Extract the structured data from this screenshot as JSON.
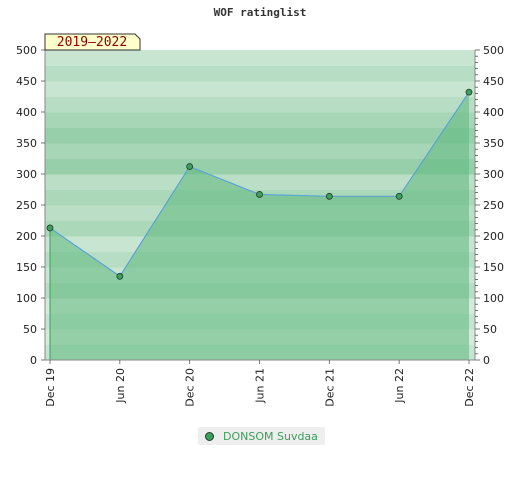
{
  "chart_data": {
    "type": "area",
    "title": "WOF ratinglist",
    "period_label": "2019–2022",
    "categories": [
      "Dec 19",
      "Jun 20",
      "Dec 20",
      "Jun 21",
      "Dec 21",
      "Jun 22",
      "Dec 22"
    ],
    "series": [
      {
        "name": "DONSOM Suvdaa",
        "values": [
          213,
          135,
          312,
          267,
          264,
          264,
          432
        ]
      }
    ],
    "ylim": [
      0,
      500
    ],
    "yticks": [
      0,
      50,
      100,
      150,
      200,
      250,
      300,
      350,
      400,
      450,
      500
    ],
    "xlabel": "",
    "ylabel": "",
    "grid": true,
    "legend_position": "bottom",
    "colors": {
      "line": "#5aa2d8",
      "point": "#3d9e5d",
      "area": "#5fb87e",
      "band_dark": "#7cc394",
      "band_light": "#bfe3cb"
    }
  }
}
